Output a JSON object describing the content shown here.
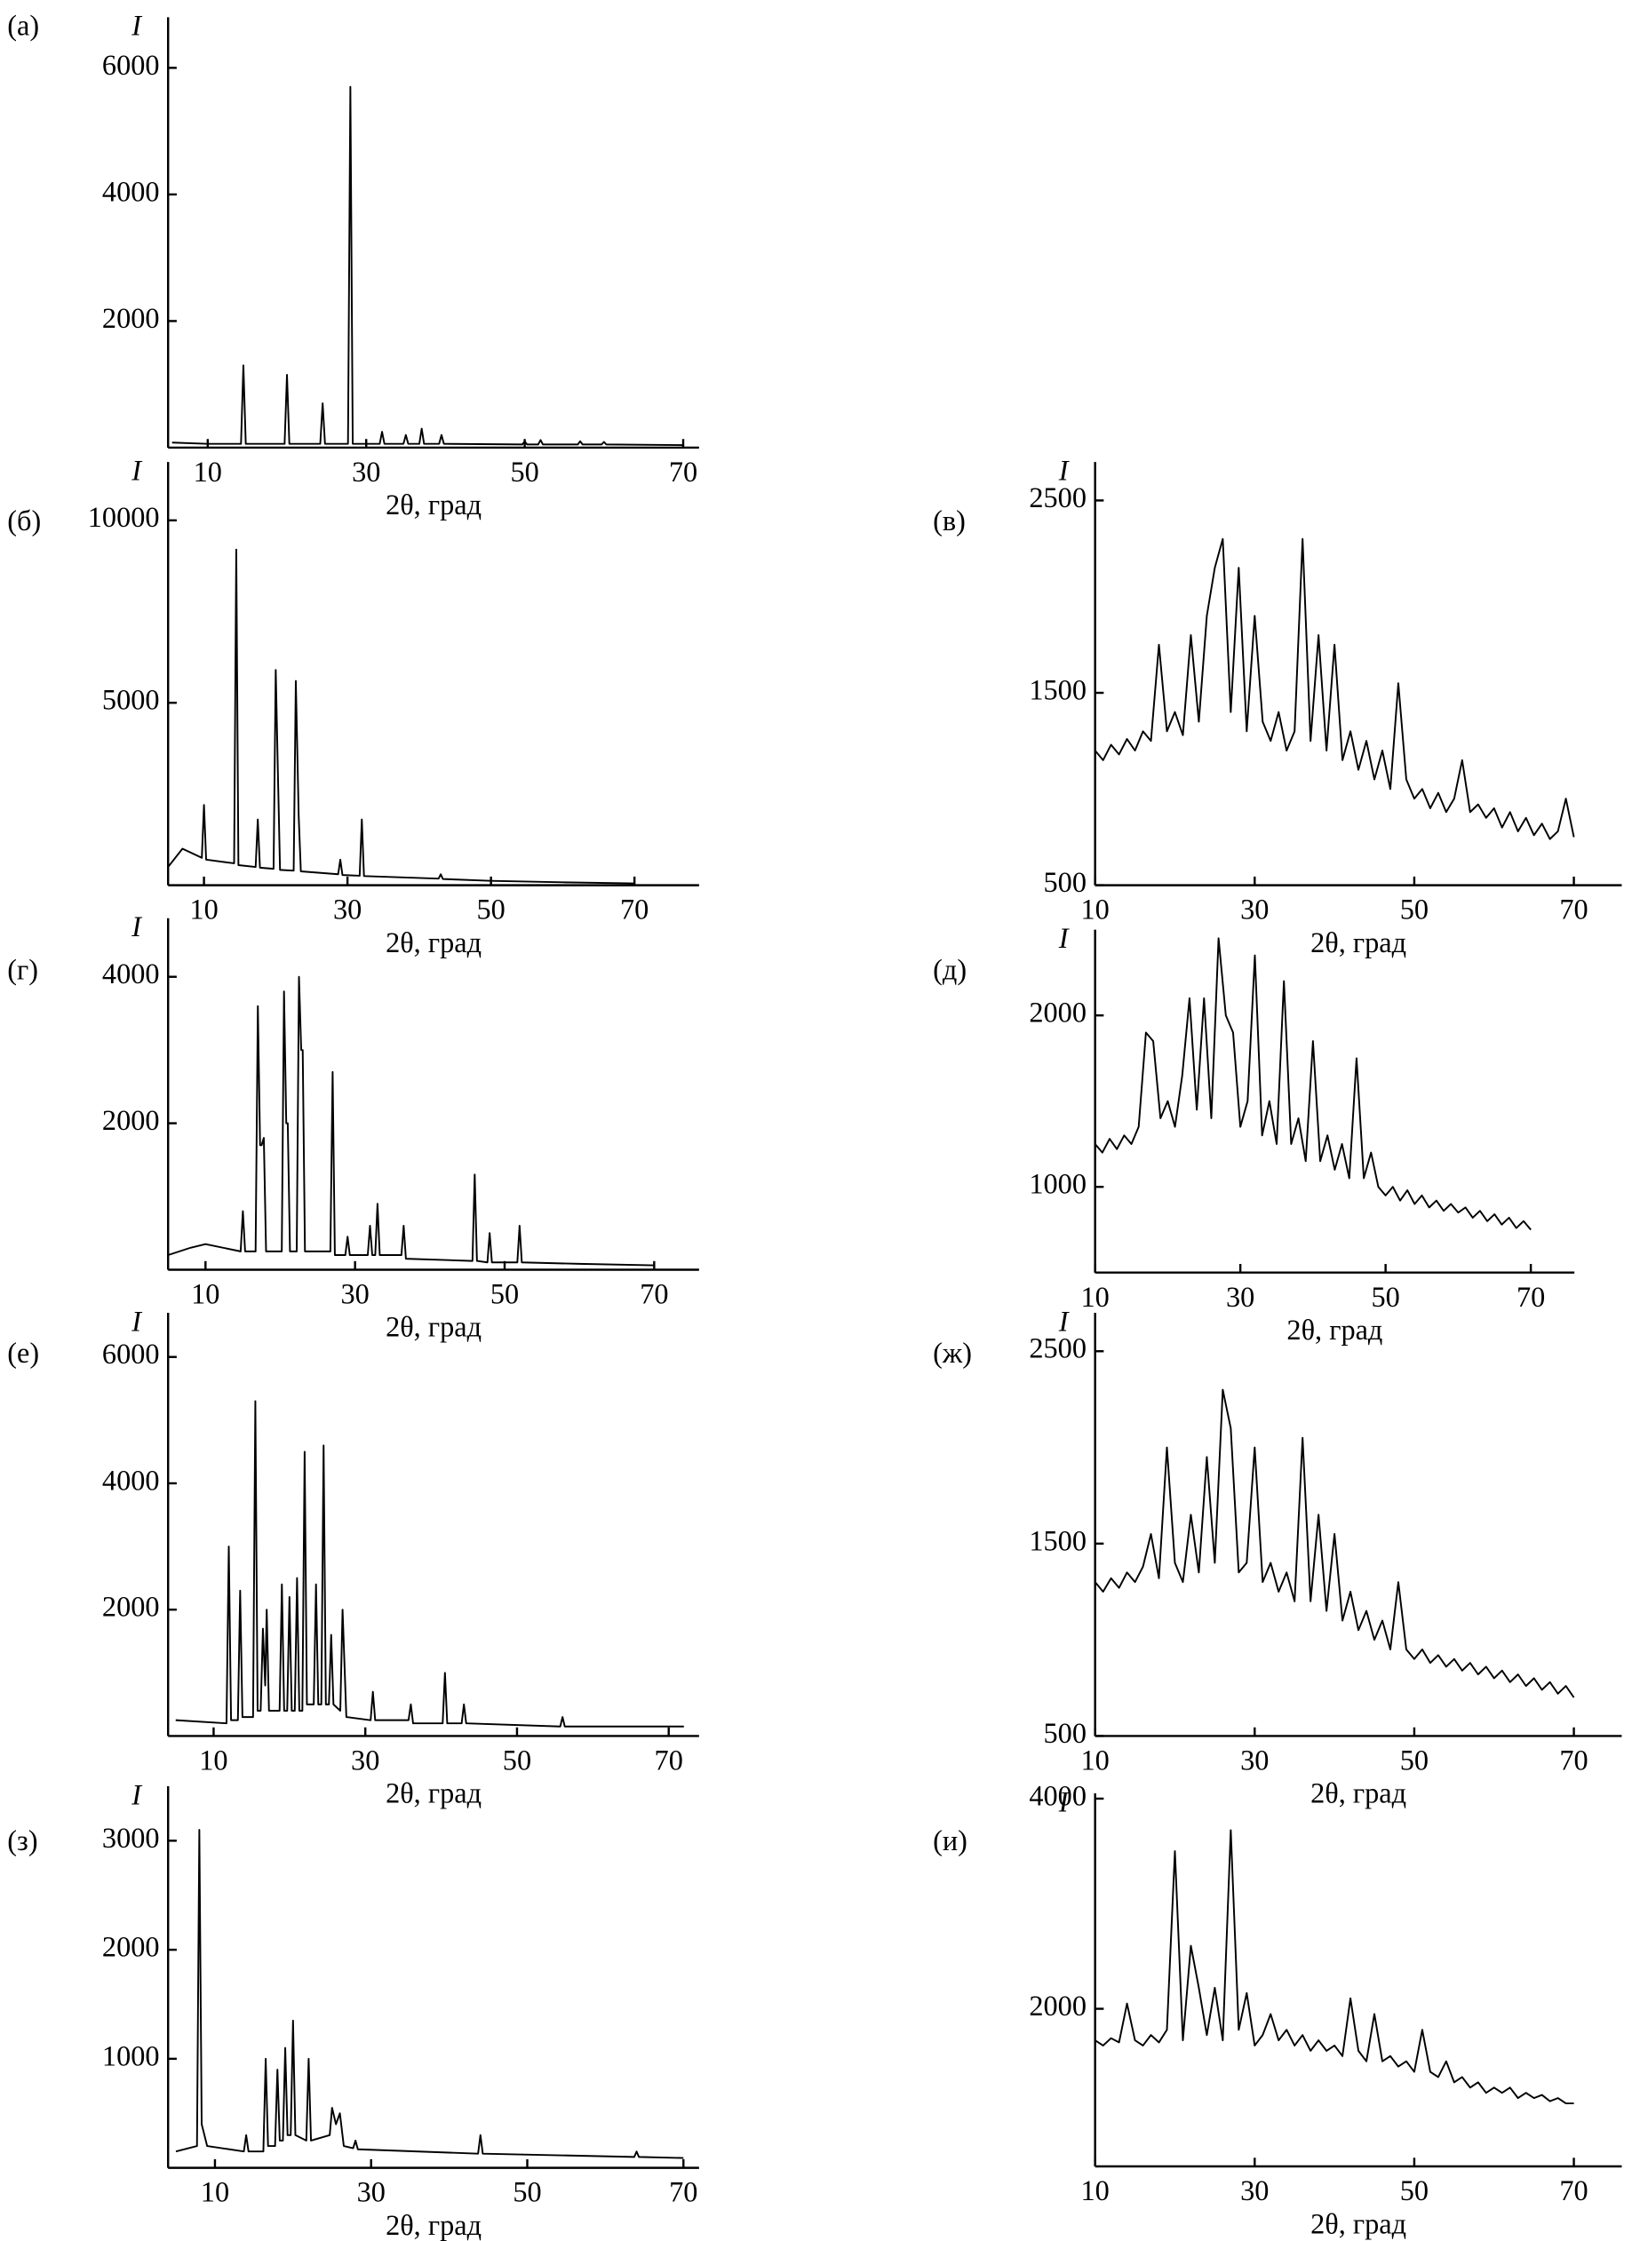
{
  "chart_data": [
    {
      "type": "line",
      "label": "(а)",
      "y_label": "I",
      "x_label": "2θ, град",
      "xlim": [
        5,
        72
      ],
      "ylim": [
        0,
        6800
      ],
      "xticks": [
        10,
        30,
        50,
        70
      ],
      "yticks": [
        2000,
        4000,
        6000
      ],
      "color": "#000000",
      "x": [
        5.5,
        10,
        14.2,
        14.5,
        14.8,
        19.7,
        20,
        20.3,
        24.2,
        24.5,
        24.8,
        27.7,
        28,
        28.3,
        31.7,
        32,
        32.3,
        34.7,
        35,
        35.3,
        36.7,
        37,
        37.3,
        39.2,
        39.5,
        39.8,
        49.7,
        50,
        50.3,
        51.7,
        52,
        52.3,
        56.7,
        57,
        57.3,
        59.7,
        60,
        60.3,
        70
      ],
      "values": [
        80,
        60,
        60,
        1300,
        60,
        60,
        1150,
        60,
        60,
        700,
        60,
        60,
        5700,
        60,
        60,
        250,
        60,
        60,
        200,
        60,
        60,
        300,
        60,
        60,
        200,
        60,
        50,
        100,
        50,
        50,
        120,
        50,
        50,
        100,
        50,
        50,
        90,
        50,
        40
      ]
    },
    {
      "type": "line",
      "label": "(б)",
      "y_label": "I",
      "x_label": "2θ, град",
      "xlim": [
        5,
        79
      ],
      "ylim": [
        0,
        11600
      ],
      "xticks": [
        10,
        30,
        50,
        70
      ],
      "yticks": [
        5000,
        10000
      ],
      "color": "#000000",
      "x": [
        5,
        7,
        9.7,
        10,
        10.3,
        14.2,
        14.5,
        14.8,
        17.2,
        17.5,
        17.8,
        19.7,
        20,
        20.3,
        20.6,
        22.5,
        22.8,
        23.2,
        23.5,
        28.7,
        29,
        29.3,
        31.7,
        32,
        32.3,
        42.7,
        43,
        43.3,
        50,
        60,
        70
      ],
      "values": [
        500,
        1000,
        750,
        2200,
        700,
        600,
        9200,
        550,
        500,
        1800,
        480,
        450,
        5900,
        3100,
        420,
        400,
        5600,
        1900,
        380,
        300,
        700,
        280,
        260,
        1800,
        250,
        180,
        300,
        170,
        120,
        80,
        50
      ]
    },
    {
      "type": "line",
      "label": "(в)",
      "y_label": "I",
      "x_label": "2θ, град",
      "xlim": [
        10,
        76
      ],
      "ylim": [
        500,
        2700
      ],
      "xticks": [
        10,
        30,
        50,
        70
      ],
      "yticks": [
        500,
        1500,
        2500
      ],
      "color": "#000000",
      "x": [
        10,
        11,
        12,
        13,
        14,
        15,
        16,
        17,
        18,
        19,
        20,
        21,
        22,
        23,
        24,
        25,
        26,
        27,
        28,
        29,
        30,
        31,
        32,
        33,
        34,
        35,
        36,
        37,
        38,
        39,
        40,
        41,
        42,
        43,
        44,
        45,
        46,
        47,
        48,
        49,
        50,
        51,
        52,
        53,
        54,
        55,
        56,
        57,
        58,
        59,
        60,
        61,
        62,
        63,
        64,
        65,
        66,
        67,
        68,
        69,
        70
      ],
      "values": [
        1200,
        1150,
        1230,
        1180,
        1260,
        1200,
        1300,
        1250,
        1750,
        1300,
        1400,
        1280,
        1800,
        1350,
        1900,
        2150,
        2300,
        1400,
        2150,
        1300,
        1900,
        1350,
        1250,
        1400,
        1200,
        1300,
        2300,
        1250,
        1800,
        1200,
        1750,
        1150,
        1300,
        1100,
        1250,
        1050,
        1200,
        1000,
        1550,
        1050,
        950,
        1000,
        900,
        980,
        880,
        950,
        1150,
        880,
        920,
        850,
        900,
        800,
        880,
        780,
        850,
        760,
        820,
        740,
        780,
        950,
        750
      ]
    },
    {
      "type": "line",
      "label": "(г)",
      "y_label": "I",
      "x_label": "2θ, град",
      "xlim": [
        5,
        76
      ],
      "ylim": [
        0,
        4800
      ],
      "xticks": [
        10,
        30,
        50,
        70
      ],
      "yticks": [
        2000,
        4000
      ],
      "color": "#000000",
      "x": [
        5,
        8,
        10,
        14.7,
        15,
        15.3,
        16.7,
        17,
        17.3,
        17.5,
        17.8,
        18.1,
        20.2,
        20.5,
        20.8,
        21,
        21.3,
        22.2,
        22.5,
        22.8,
        23,
        23.3,
        26.7,
        27,
        27.3,
        28.7,
        29,
        29.3,
        31.7,
        32,
        32.3,
        32.7,
        33,
        33.3,
        36.2,
        36.5,
        36.8,
        45.7,
        46,
        46.3,
        47.7,
        48,
        48.3,
        51.7,
        52,
        52.3,
        60,
        70
      ],
      "values": [
        200,
        300,
        350,
        250,
        800,
        250,
        250,
        3600,
        1700,
        1700,
        1800,
        250,
        250,
        3800,
        2000,
        2000,
        250,
        250,
        4000,
        3000,
        3000,
        250,
        250,
        2700,
        200,
        200,
        450,
        200,
        200,
        600,
        200,
        200,
        900,
        200,
        200,
        600,
        150,
        120,
        1300,
        120,
        100,
        500,
        100,
        100,
        600,
        100,
        80,
        60
      ]
    },
    {
      "type": "line",
      "label": "(д)",
      "y_label": "I",
      "x_label": "2θ, град",
      "xlim": [
        10,
        76
      ],
      "ylim": [
        500,
        2500
      ],
      "xticks": [
        10,
        30,
        50,
        70
      ],
      "yticks": [
        1000,
        2000
      ],
      "color": "#000000",
      "x": [
        10,
        11,
        12,
        13,
        14,
        15,
        16,
        17,
        18,
        19,
        20,
        21,
        22,
        23,
        24,
        25,
        26,
        27,
        28,
        29,
        30,
        31,
        32,
        33,
        34,
        35,
        36,
        37,
        38,
        39,
        40,
        41,
        42,
        43,
        44,
        45,
        46,
        47,
        48,
        49,
        50,
        51,
        52,
        53,
        54,
        55,
        56,
        57,
        58,
        59,
        60,
        61,
        62,
        63,
        64,
        65,
        66,
        67,
        68,
        69,
        70
      ],
      "values": [
        1250,
        1200,
        1280,
        1220,
        1300,
        1250,
        1350,
        1900,
        1850,
        1400,
        1500,
        1350,
        1650,
        2100,
        1450,
        2100,
        1400,
        2450,
        2000,
        1900,
        1350,
        1500,
        2350,
        1300,
        1500,
        1250,
        2200,
        1250,
        1400,
        1150,
        1850,
        1150,
        1300,
        1100,
        1250,
        1050,
        1750,
        1050,
        1200,
        1000,
        950,
        1000,
        920,
        980,
        900,
        950,
        880,
        920,
        860,
        900,
        850,
        880,
        820,
        860,
        800,
        840,
        780,
        820,
        760,
        800,
        750
      ]
    },
    {
      "type": "line",
      "label": "(е)",
      "y_label": "I",
      "x_label": "2θ, град",
      "xlim": [
        4,
        74
      ],
      "ylim": [
        0,
        6700
      ],
      "xticks": [
        10,
        30,
        50,
        70
      ],
      "yticks": [
        2000,
        4000,
        6000
      ],
      "color": "#000000",
      "x": [
        5,
        11.7,
        12,
        12.3,
        13.2,
        13.5,
        13.8,
        15.2,
        15.5,
        15.8,
        16.2,
        16.5,
        16.8,
        17,
        17.3,
        18.7,
        19,
        19.3,
        19.7,
        20,
        20.3,
        20.7,
        21,
        21.3,
        21.7,
        22,
        22.3,
        23.2,
        23.5,
        23.8,
        24.2,
        24.5,
        24.8,
        25.2,
        25.5,
        25.8,
        26.7,
        27,
        27.5,
        30.7,
        31,
        31.3,
        35.7,
        36,
        36.3,
        40.2,
        40.5,
        40.8,
        42.7,
        43,
        43.3,
        55.7,
        56,
        56.3,
        72
      ],
      "values": [
        250,
        200,
        3000,
        250,
        250,
        2300,
        300,
        300,
        5300,
        400,
        400,
        1700,
        800,
        2000,
        400,
        400,
        2400,
        400,
        400,
        2200,
        400,
        400,
        2500,
        400,
        400,
        4500,
        500,
        500,
        2400,
        500,
        500,
        4600,
        500,
        500,
        1600,
        500,
        400,
        2000,
        300,
        250,
        700,
        250,
        250,
        500,
        200,
        200,
        1000,
        200,
        200,
        500,
        200,
        150,
        300,
        150,
        150
      ]
    },
    {
      "type": "line",
      "label": "(ж)",
      "y_label": "I",
      "x_label": "2θ, град",
      "xlim": [
        10,
        76
      ],
      "ylim": [
        500,
        2700
      ],
      "xticks": [
        10,
        30,
        50,
        70
      ],
      "yticks": [
        500,
        1500,
        2500
      ],
      "color": "#000000",
      "x": [
        10,
        11,
        12,
        13,
        14,
        15,
        16,
        17,
        18,
        19,
        20,
        21,
        22,
        23,
        24,
        25,
        26,
        27,
        28,
        29,
        30,
        31,
        32,
        33,
        34,
        35,
        36,
        37,
        38,
        39,
        40,
        41,
        42,
        43,
        44,
        45,
        46,
        47,
        48,
        49,
        50,
        51,
        52,
        53,
        54,
        55,
        56,
        57,
        58,
        59,
        60,
        61,
        62,
        63,
        64,
        65,
        66,
        67,
        68,
        69,
        70
      ],
      "values": [
        1300,
        1250,
        1320,
        1270,
        1350,
        1300,
        1380,
        1550,
        1320,
        2000,
        1400,
        1300,
        1650,
        1350,
        1950,
        1400,
        2300,
        2100,
        1350,
        1400,
        2000,
        1300,
        1400,
        1250,
        1350,
        1200,
        2050,
        1200,
        1650,
        1150,
        1550,
        1100,
        1250,
        1050,
        1150,
        1000,
        1100,
        950,
        1300,
        950,
        900,
        950,
        880,
        920,
        860,
        900,
        840,
        880,
        820,
        860,
        800,
        840,
        780,
        820,
        760,
        800,
        740,
        780,
        720,
        760,
        700
      ]
    },
    {
      "type": "line",
      "label": "(з)",
      "y_label": "I",
      "x_label": "2θ, град",
      "xlim": [
        4,
        72
      ],
      "ylim": [
        0,
        3500
      ],
      "xticks": [
        10,
        30,
        50,
        70
      ],
      "yticks": [
        1000,
        2000,
        3000
      ],
      "color": "#000000",
      "x": [
        5,
        7.7,
        8,
        8.3,
        9,
        13.7,
        14,
        14.3,
        16.2,
        16.5,
        16.8,
        17.7,
        18,
        18.3,
        18.7,
        19,
        19.3,
        19.7,
        20,
        20.3,
        21.7,
        22,
        22.3,
        24.7,
        25,
        25.5,
        26,
        26.5,
        27.7,
        28,
        28.3,
        43.7,
        44,
        44.3,
        63.7,
        64,
        64.3,
        70
      ],
      "values": [
        150,
        200,
        3100,
        400,
        200,
        150,
        300,
        150,
        150,
        1000,
        200,
        200,
        900,
        250,
        250,
        1100,
        300,
        300,
        1350,
        300,
        250,
        1000,
        250,
        300,
        550,
        400,
        500,
        200,
        180,
        250,
        170,
        130,
        300,
        130,
        100,
        150,
        100,
        90
      ]
    },
    {
      "type": "line",
      "label": "(и)",
      "y_label": "I",
      "x_label": "2θ, град",
      "xlim": [
        10,
        76
      ],
      "ylim": [
        500,
        4050
      ],
      "xticks": [
        10,
        30,
        50,
        70
      ],
      "yticks": [
        2000,
        4000
      ],
      "color": "#000000",
      "x": [
        10,
        11,
        12,
        13,
        14,
        15,
        16,
        17,
        18,
        19,
        20,
        21,
        22,
        23,
        24,
        25,
        26,
        27,
        28,
        29,
        30,
        31,
        32,
        33,
        34,
        35,
        36,
        37,
        38,
        39,
        40,
        41,
        42,
        43,
        44,
        45,
        46,
        47,
        48,
        49,
        50,
        51,
        52,
        53,
        54,
        55,
        56,
        57,
        58,
        59,
        60,
        61,
        62,
        63,
        64,
        65,
        66,
        67,
        68,
        69,
        70
      ],
      "values": [
        1700,
        1650,
        1720,
        1680,
        2050,
        1700,
        1650,
        1750,
        1680,
        1800,
        3500,
        1700,
        2600,
        2200,
        1750,
        2200,
        1700,
        3700,
        1800,
        2150,
        1650,
        1750,
        1950,
        1700,
        1800,
        1650,
        1750,
        1600,
        1700,
        1600,
        1650,
        1550,
        2100,
        1600,
        1500,
        1950,
        1500,
        1550,
        1450,
        1500,
        1400,
        1800,
        1400,
        1350,
        1500,
        1300,
        1350,
        1250,
        1300,
        1200,
        1250,
        1200,
        1250,
        1150,
        1200,
        1150,
        1180,
        1120,
        1150,
        1100,
        1100
      ]
    }
  ]
}
